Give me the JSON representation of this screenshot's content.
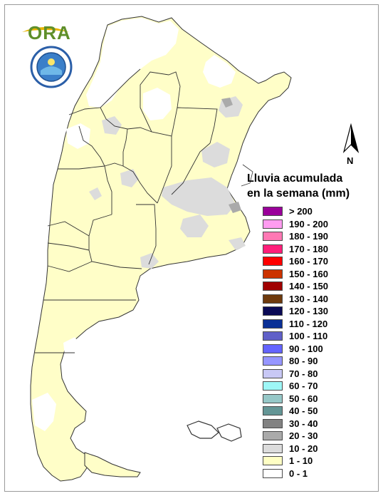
{
  "logo": {
    "text": "ORA",
    "seal_text": "SERVICIO METEOROLOGICO NACIONAL ARGENTINA"
  },
  "north_arrow": {
    "label": "N"
  },
  "legend": {
    "title_lines": [
      "Lluvia acumulada",
      "en la semana (mm)"
    ],
    "items": [
      {
        "label": "> 200",
        "color": "#9a009a"
      },
      {
        "label": "190 - 200",
        "color": "#ff9cf0"
      },
      {
        "label": "180 - 190",
        "color": "#ff78b4"
      },
      {
        "label": "170 - 180",
        "color": "#ff1f7a"
      },
      {
        "label": "160 - 170",
        "color": "#ff0000"
      },
      {
        "label": "150 - 160",
        "color": "#cc3300"
      },
      {
        "label": "140 - 150",
        "color": "#a00000"
      },
      {
        "label": "130 - 140",
        "color": "#6e3a0d"
      },
      {
        "label": "120 - 130",
        "color": "#0a0a55"
      },
      {
        "label": "110 - 120",
        "color": "#0a3096"
      },
      {
        "label": "100 - 110",
        "color": "#6060c8"
      },
      {
        "label": "90 - 100",
        "color": "#6464ff"
      },
      {
        "label": "80 - 90",
        "color": "#9696ff"
      },
      {
        "label": "70 - 80",
        "color": "#c8c8f5"
      },
      {
        "label": "60 - 70",
        "color": "#9ef7f7"
      },
      {
        "label": "50 - 60",
        "color": "#96c8c8"
      },
      {
        "label": "40 - 50",
        "color": "#649696"
      },
      {
        "label": "30 - 40",
        "color": "#828282"
      },
      {
        "label": "20 - 30",
        "color": "#aaaaaa"
      },
      {
        "label": "10 - 20",
        "color": "#dcdcdc"
      },
      {
        "label": "1 - 10",
        "color": "#ffffc4"
      },
      {
        "label": "0 - 1",
        "color": "#ffffff"
      }
    ]
  }
}
